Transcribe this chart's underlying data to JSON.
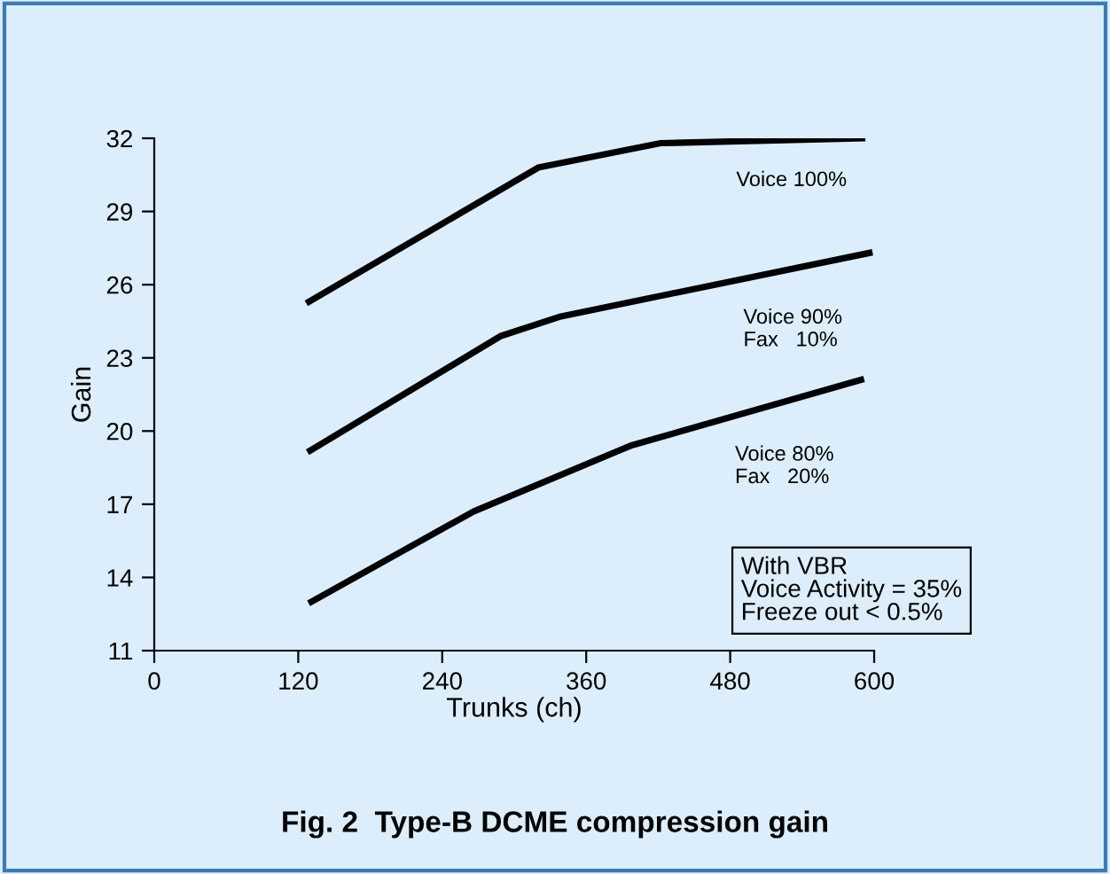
{
  "chart_data": {
    "type": "line",
    "title": "Fig. 2  Type-B DCME compression gain",
    "xlabel": "Trunks (ch)",
    "ylabel": "Gain",
    "xlim": [
      0,
      600
    ],
    "xticks": [
      0,
      120,
      240,
      360,
      480,
      600
    ],
    "ylim": [
      11,
      32
    ],
    "yticks": [
      11,
      14,
      17,
      20,
      23,
      26,
      29,
      32
    ],
    "grid": false,
    "legend": false,
    "marker": "none",
    "line_style": "solid",
    "series": [
      {
        "name": "Voice 100%",
        "color": "#000000",
        "x": [
          129,
          320,
          422,
          590
        ],
        "values": [
          25.3,
          30.8,
          31.8,
          32.0
        ]
      },
      {
        "name": "Voice 90%\nFax   10%",
        "color": "#000000",
        "x": [
          130,
          289,
          339,
          596
        ],
        "values": [
          19.2,
          23.9,
          24.7,
          27.3
        ]
      },
      {
        "name": "Voice 80%\nFax   20%",
        "color": "#000000",
        "x": [
          131,
          266,
          397,
          589
        ],
        "values": [
          13.0,
          16.7,
          19.4,
          22.1
        ]
      }
    ],
    "annotations": [
      "With VBR\nVoice Activity = 35%\nFreeze out < 0.5%"
    ]
  }
}
